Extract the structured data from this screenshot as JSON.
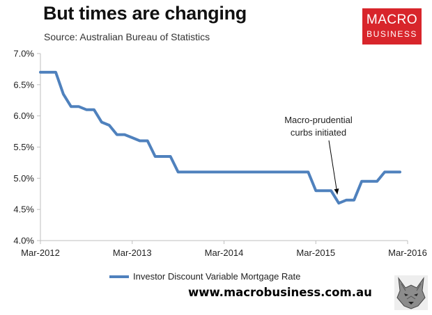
{
  "header": {
    "title": "But times are changing",
    "source": "Source: Australian Bureau of Statistics"
  },
  "logo": {
    "line1": "MACRO",
    "line2": "BUSINESS"
  },
  "footer": {
    "website": "www.macrobusiness.com.au"
  },
  "colors": {
    "series": "#4f81bd",
    "logo_bg": "#d8252b",
    "axis": "#bfbfbf"
  },
  "icons": {
    "mascot": "wolf-icon"
  },
  "chart_data": {
    "type": "line",
    "title": "But times are changing",
    "xlabel": "",
    "ylabel": "",
    "x_ticks": [
      "Mar-2012",
      "Mar-2013",
      "Mar-2014",
      "Mar-2015",
      "Mar-2016"
    ],
    "y_ticks": [
      "4.0%",
      "4.5%",
      "5.0%",
      "5.5%",
      "6.0%",
      "6.5%",
      "7.0%"
    ],
    "ylim": [
      4.0,
      7.0
    ],
    "grid": false,
    "legend_position": "bottom",
    "series": [
      {
        "name": "Investor Discount Variable Mortgage Rate",
        "x": [
          "2012-03",
          "2012-04",
          "2012-05",
          "2012-06",
          "2012-07",
          "2012-08",
          "2012-09",
          "2012-10",
          "2012-11",
          "2012-12",
          "2013-01",
          "2013-02",
          "2013-03",
          "2013-04",
          "2013-05",
          "2013-06",
          "2013-07",
          "2013-08",
          "2013-09",
          "2013-10",
          "2013-11",
          "2013-12",
          "2014-01",
          "2014-02",
          "2014-03",
          "2014-04",
          "2014-05",
          "2014-06",
          "2014-07",
          "2014-08",
          "2014-09",
          "2014-10",
          "2014-11",
          "2014-12",
          "2015-01",
          "2015-02",
          "2015-03",
          "2015-04",
          "2015-05",
          "2015-06",
          "2015-07",
          "2015-08",
          "2015-09",
          "2015-10",
          "2015-11",
          "2015-12",
          "2016-01",
          "2016-02"
        ],
        "values": [
          6.7,
          6.7,
          6.7,
          6.35,
          6.15,
          6.15,
          6.1,
          6.1,
          5.9,
          5.85,
          5.7,
          5.7,
          5.65,
          5.6,
          5.6,
          5.35,
          5.35,
          5.35,
          5.1,
          5.1,
          5.1,
          5.1,
          5.1,
          5.1,
          5.1,
          5.1,
          5.1,
          5.1,
          5.1,
          5.1,
          5.1,
          5.1,
          5.1,
          5.1,
          5.1,
          5.1,
          4.8,
          4.8,
          4.8,
          4.6,
          4.65,
          4.65,
          4.95,
          4.95,
          4.95,
          5.1,
          5.1,
          5.1
        ]
      }
    ],
    "annotations": [
      {
        "text_line1": "Macro-prudential",
        "text_line2": "curbs initiated",
        "x": "2015-06",
        "y": 4.63
      }
    ]
  }
}
